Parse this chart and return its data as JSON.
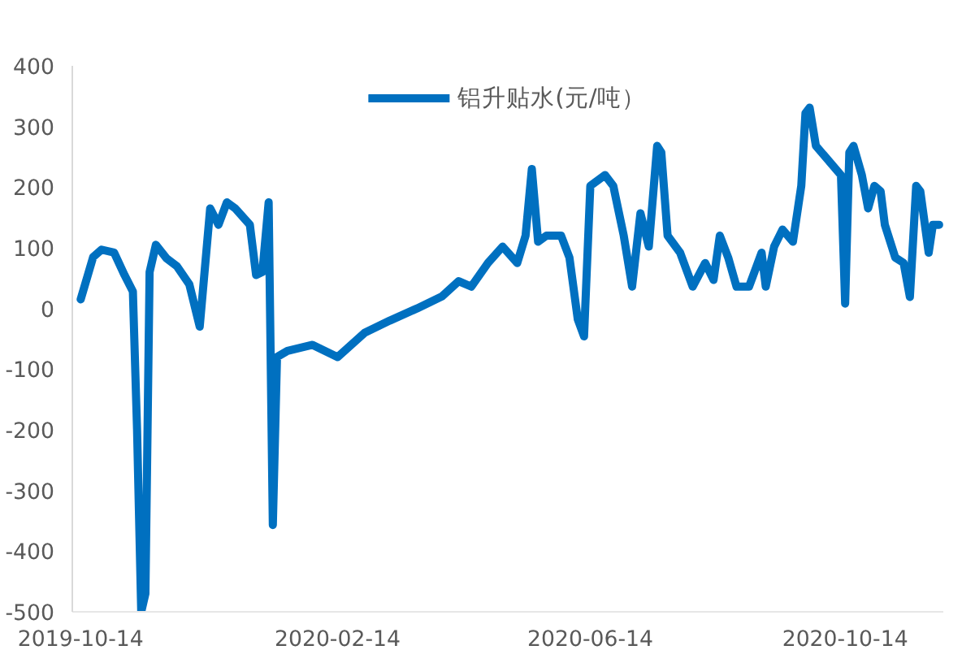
{
  "chart_data": {
    "type": "line",
    "x": [
      "2019-10-14",
      "2019-10-20",
      "2019-10-24",
      "2019-10-30",
      "2019-11-04",
      "2019-11-08",
      "2019-11-10",
      "2019-11-12",
      "2019-11-14",
      "2019-11-16",
      "2019-11-19",
      "2019-11-24",
      "2019-11-29",
      "2019-12-05",
      "2019-12-10",
      "2019-12-15",
      "2019-12-19",
      "2019-12-23",
      "2019-12-27",
      "2020-01-03",
      "2020-01-06",
      "2020-01-09",
      "2020-01-12",
      "2020-01-14",
      "2020-01-16",
      "2020-01-21",
      "2020-02-02",
      "2020-02-14",
      "2020-02-27",
      "2020-03-10",
      "2020-03-23",
      "2020-04-04",
      "2020-04-12",
      "2020-04-18",
      "2020-04-26",
      "2020-05-03",
      "2020-05-10",
      "2020-05-14",
      "2020-05-17",
      "2020-05-20",
      "2020-05-24",
      "2020-05-31",
      "2020-06-04",
      "2020-06-08",
      "2020-06-11",
      "2020-06-14",
      "2020-06-21",
      "2020-06-25",
      "2020-06-30",
      "2020-07-04",
      "2020-07-08",
      "2020-07-12",
      "2020-07-16",
      "2020-07-18",
      "2020-07-21",
      "2020-07-27",
      "2020-08-02",
      "2020-08-08",
      "2020-08-12",
      "2020-08-15",
      "2020-08-19",
      "2020-08-23",
      "2020-08-29",
      "2020-09-04",
      "2020-09-06",
      "2020-09-10",
      "2020-09-14",
      "2020-09-19",
      "2020-09-23",
      "2020-09-25",
      "2020-09-27",
      "2020-09-30",
      "2020-10-12",
      "2020-10-14",
      "2020-10-16",
      "2020-10-18",
      "2020-10-22",
      "2020-10-25",
      "2020-10-28",
      "2020-10-31",
      "2020-11-02",
      "2020-11-07",
      "2020-11-11",
      "2020-11-14",
      "2020-11-17",
      "2020-11-19",
      "2020-11-23",
      "2020-11-25",
      "2020-11-28"
    ],
    "series": [
      {
        "name": "铝升贴水(元/吨）",
        "color": "#0070c0",
        "values": [
          15,
          85,
          97,
          92,
          55,
          28,
          -200,
          -500,
          -470,
          60,
          105,
          83,
          70,
          40,
          -30,
          165,
          138,
          175,
          165,
          138,
          55,
          60,
          175,
          -357,
          -80,
          -70,
          -60,
          -80,
          -40,
          -20,
          0,
          20,
          45,
          36,
          75,
          102,
          75,
          120,
          230,
          110,
          120,
          120,
          84,
          -18,
          -46,
          202,
          220,
          202,
          120,
          36,
          157,
          102,
          268,
          257,
          120,
          92,
          36,
          75,
          47,
          120,
          84,
          36,
          36,
          92,
          36,
          102,
          130,
          110,
          202,
          322,
          331,
          268,
          220,
          8,
          257,
          268,
          220,
          165,
          202,
          193,
          138,
          84,
          75,
          19,
          202,
          193,
          92,
          138,
          138
        ]
      }
    ],
    "xlim": [
      "2019-10-10",
      "2020-11-30"
    ],
    "xticks": [
      {
        "value": "2019-10-14",
        "label": "2019-10-14"
      },
      {
        "value": "2020-02-14",
        "label": "2020-02-14"
      },
      {
        "value": "2020-06-14",
        "label": "2020-06-14"
      },
      {
        "value": "2020-10-14",
        "label": "2020-10-14"
      }
    ],
    "ylim": [
      -500,
      400
    ],
    "yticks": [
      -500,
      -400,
      -300,
      -200,
      -100,
      0,
      100,
      200,
      300,
      400
    ],
    "grid": false,
    "legend": "top",
    "marker": "none",
    "line_style": "solid"
  }
}
